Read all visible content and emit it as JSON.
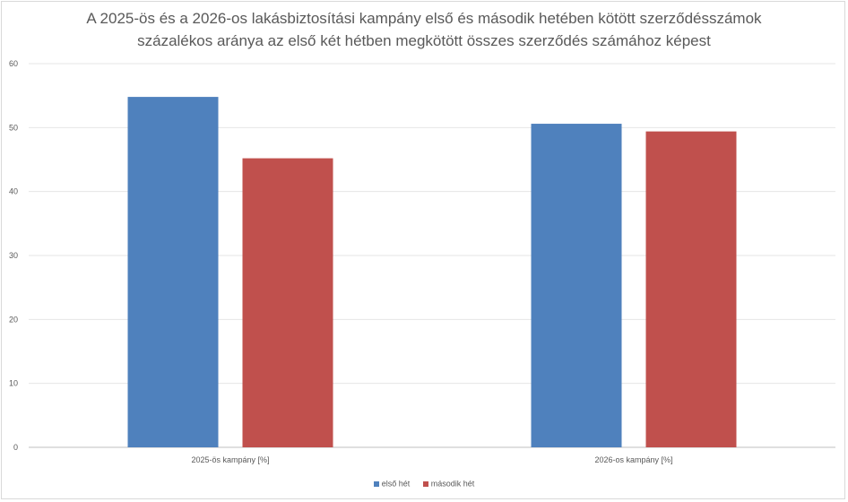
{
  "chart_data": {
    "type": "bar",
    "title": [
      "A 2025-ös és a 2026-os lakásbiztosítási kampány első és második hetében kötött szerződésszámok",
      "százalékos aránya az első két hétben megkötött összes szerződés számához képest"
    ],
    "categories": [
      "2025-ös kampány [%]",
      "2026-os kampány [%]"
    ],
    "series": [
      {
        "name": "első hét",
        "color": "#4f81bd",
        "values": [
          54.8,
          50.6
        ]
      },
      {
        "name": "második hét",
        "color": "#c0504d",
        "values": [
          45.2,
          49.4
        ]
      }
    ],
    "ylim": [
      0,
      60
    ],
    "yticks": [
      0,
      10,
      20,
      30,
      40,
      50,
      60
    ],
    "grid": true,
    "legend": "bottom"
  }
}
